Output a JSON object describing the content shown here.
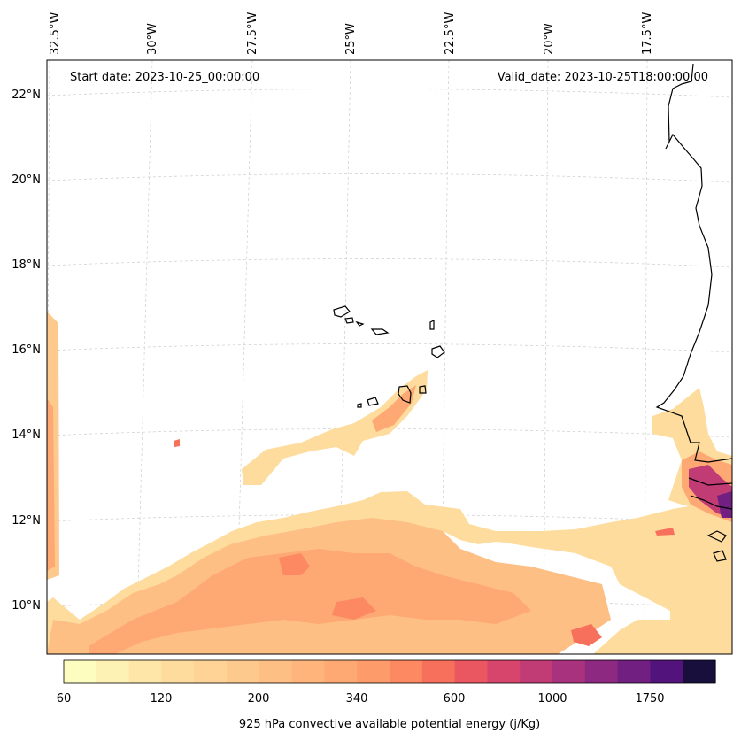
{
  "map": {
    "start_date": "Start date: 2023-10-25_00:00:00",
    "valid_date": "Valid_date: 2023-10-25T18:00:00.00",
    "lon_labels": [
      "32.5°W",
      "30°W",
      "27.5°W",
      "25°W",
      "22.5°W",
      "20°W",
      "17.5°W"
    ],
    "lat_labels": [
      "22°N",
      "20°N",
      "18°N",
      "16°N",
      "14°N",
      "12°N",
      "10°N"
    ],
    "field": "925 hPa convective available potential energy",
    "coastline_color": "#000000",
    "gridline_color": "#cccccc"
  },
  "colorbar": {
    "label": "925 hPa convective available potential energy (j/Kg)",
    "tick_labels": [
      "60",
      "120",
      "200",
      "340",
      "600",
      "1000",
      "1750"
    ],
    "colormap": "magma_r",
    "colors": [
      "#fcfdbf",
      "#fdf1b3",
      "#fde6a8",
      "#fddc9e",
      "#fed395",
      "#fec98d",
      "#febf84",
      "#feb47b",
      "#fea873",
      "#fe9b6b",
      "#fc8961",
      "#f7705c",
      "#eb5760",
      "#d8456c",
      "#c13b75",
      "#a8327d",
      "#8d2981",
      "#711f81",
      "#52137c",
      "#180f3d"
    ]
  },
  "cape_patches": [
    {
      "level": 5,
      "desc": "southern band"
    },
    {
      "level": 8,
      "desc": "southern band core"
    },
    {
      "level": 9,
      "desc": "southern band max"
    },
    {
      "level": 6,
      "desc": "western edge"
    },
    {
      "level": 4,
      "desc": "mid streak"
    },
    {
      "level": 14,
      "desc": "coastal max"
    }
  ]
}
